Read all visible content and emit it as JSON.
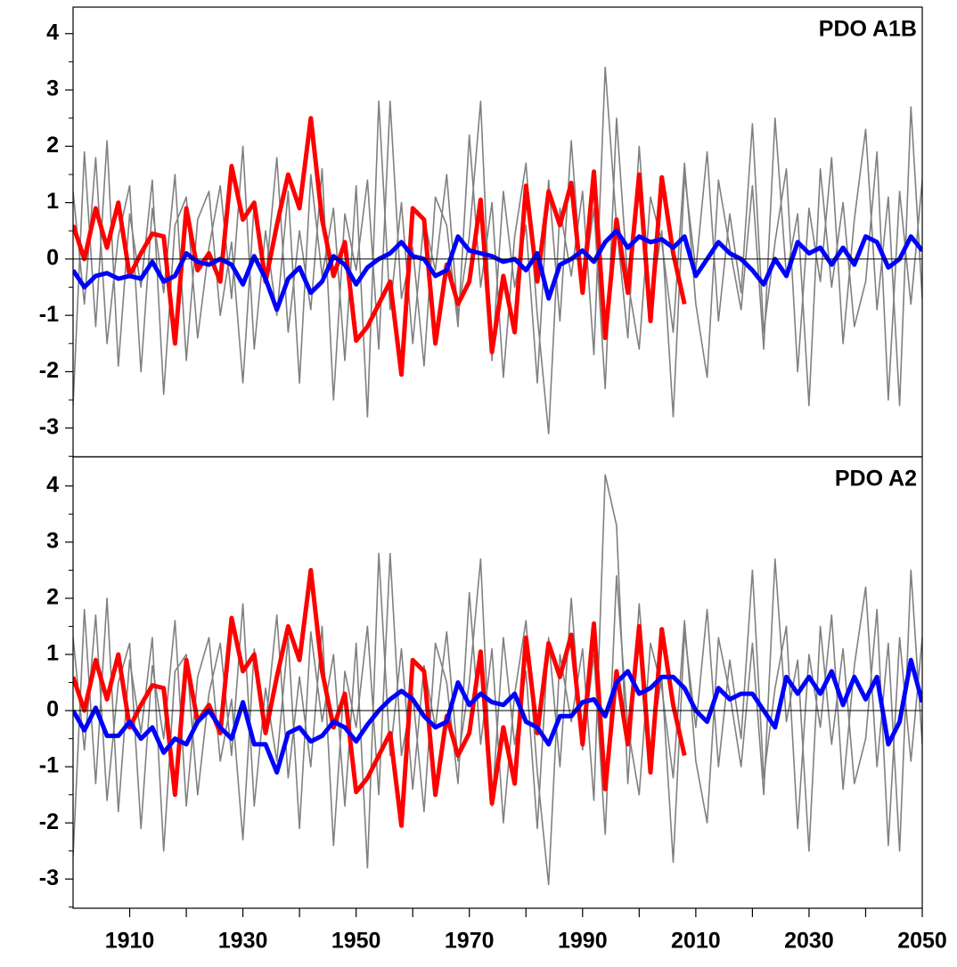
{
  "chart_data": [
    {
      "type": "line",
      "title": "PDO A1B",
      "x": [
        1900,
        1902,
        1904,
        1906,
        1908,
        1910,
        1912,
        1914,
        1916,
        1918,
        1920,
        1922,
        1924,
        1926,
        1928,
        1930,
        1932,
        1934,
        1936,
        1938,
        1940,
        1942,
        1944,
        1946,
        1948,
        1950,
        1952,
        1954,
        1956,
        1958,
        1960,
        1962,
        1964,
        1966,
        1968,
        1970,
        1972,
        1974,
        1976,
        1978,
        1980,
        1982,
        1984,
        1986,
        1988,
        1990,
        1992,
        1994,
        1996,
        1998,
        2000,
        2002,
        2004,
        2006,
        2008,
        2010,
        2012,
        2014,
        2016,
        2018,
        2020,
        2022,
        2024,
        2026,
        2028,
        2030,
        2032,
        2034,
        2036,
        2038,
        2040,
        2042,
        2044,
        2046,
        2048,
        2050
      ],
      "series": [
        {
          "color": "#808080",
          "values": [
            1.2,
            -0.8,
            1.8,
            -1.5,
            0.4,
            1.3,
            -2.0,
            0.9,
            -0.6,
            1.5,
            -1.8,
            0.7,
            1.2,
            -1.0,
            0.3,
            -2.2,
            1.0,
            -0.4,
            1.8,
            -1.3,
            0.5,
            -0.9,
            1.6,
            -2.5,
            0.8,
            -0.2,
            1.4,
            -1.6,
            2.8,
            -0.7,
            0.2,
            -1.9,
            1.1,
            0.6,
            -1.2,
            2.2,
            -0.5,
            1.0,
            -2.1,
            0.4,
            1.7,
            -1.0,
            -3.1,
            0.9,
            -0.3,
            1.2,
            -1.7,
            3.4,
            0.6,
            -1.4,
            2.0,
            -0.8,
            0.5,
            -2.8,
            1.5,
            -0.2,
            1.9,
            -1.1,
            0.8,
            -0.6,
            2.4,
            -1.3,
            0.3,
            1.6,
            -2.0,
            0.9,
            -0.4,
            1.8,
            -1.5,
            0.7,
            2.3,
            -0.9,
            1.1,
            -2.6,
            2.7,
            -0.7
          ]
        },
        {
          "color": "#808080",
          "values": [
            -2.6,
            1.9,
            -1.2,
            2.1,
            -1.9,
            0.8,
            -0.5,
            1.4,
            -2.4,
            0.6,
            1.1,
            -1.4,
            0.2,
            1.3,
            -0.7,
            2.0,
            -1.6,
            0.5,
            -1.0,
            1.2,
            -2.2,
            1.5,
            -0.3,
            0.9,
            -1.8,
            1.3,
            -2.8,
            2.8,
            -0.9,
            1.0,
            -1.5,
            0.7,
            -0.2,
            1.5,
            -1.0,
            0.4,
            2.8,
            -1.8,
            1.2,
            -0.5,
            0.6,
            -2.2,
            1.4,
            -1.1,
            2.1,
            -0.6,
            0.9,
            -2.3,
            2.5,
            -0.4,
            -1.6,
            1.1,
            0.3,
            -1.3,
            1.7,
            -0.8,
            -2.1,
            1.4,
            0.2,
            -0.9,
            1.3,
            -1.6,
            2.5,
            -0.3,
            0.8,
            -2.6,
            1.6,
            -0.5,
            1.0,
            -1.2,
            -0.4,
            1.9,
            -2.5,
            1.2,
            -0.8,
            1.4
          ]
        },
        {
          "color": "#ff0000",
          "values": [
            0.6,
            0.0,
            0.9,
            0.2,
            1.0,
            -0.3,
            0.1,
            0.45,
            0.4,
            -1.5,
            0.9,
            -0.2,
            0.1,
            -0.4,
            1.65,
            0.7,
            1.0,
            -0.4,
            0.6,
            1.5,
            0.9,
            2.5,
            0.7,
            -0.3,
            0.3,
            -1.45,
            -1.2,
            -0.8,
            -0.4,
            -2.05,
            0.9,
            0.7,
            -1.5,
            -0.1,
            -0.8,
            -0.4,
            1.05,
            -1.65,
            -0.3,
            -1.3,
            1.3,
            -0.4,
            1.2,
            0.6,
            1.35,
            -0.6,
            1.55,
            -1.4,
            0.7,
            -0.6,
            1.5,
            -1.1,
            1.45,
            0.1,
            -0.8,
            null,
            null,
            null,
            null,
            null,
            null,
            null,
            null,
            null,
            null,
            null,
            null,
            null,
            null,
            null,
            null,
            null,
            null,
            null,
            null,
            null
          ]
        },
        {
          "color": "#0000ff",
          "values": [
            -0.2,
            -0.5,
            -0.3,
            -0.25,
            -0.35,
            -0.3,
            -0.35,
            -0.05,
            -0.4,
            -0.3,
            0.1,
            -0.05,
            -0.1,
            0.0,
            -0.1,
            -0.45,
            0.05,
            -0.35,
            -0.9,
            -0.35,
            -0.15,
            -0.6,
            -0.4,
            0.05,
            -0.1,
            -0.45,
            -0.15,
            0.0,
            0.1,
            0.3,
            0.05,
            0.0,
            -0.3,
            -0.2,
            0.4,
            0.15,
            0.1,
            0.05,
            -0.05,
            0.0,
            -0.2,
            0.1,
            -0.7,
            -0.1,
            0.0,
            0.15,
            -0.05,
            0.3,
            0.5,
            0.2,
            0.4,
            0.3,
            0.35,
            0.2,
            0.4,
            -0.3,
            0.0,
            0.3,
            0.1,
            0.0,
            -0.2,
            -0.45,
            0.0,
            -0.3,
            0.3,
            0.1,
            0.2,
            -0.1,
            0.2,
            -0.1,
            0.4,
            0.3,
            -0.15,
            0.0,
            0.4,
            0.15
          ]
        }
      ],
      "xlim": [
        1900,
        2050
      ],
      "xminorticks": [
        1920,
        1940,
        1960,
        1980,
        2000,
        2020,
        2040
      ],
      "ylim": [
        -3.51,
        4.47
      ],
      "yticks": [
        -3,
        -2,
        -1,
        0,
        1,
        2,
        3,
        4
      ],
      "yminorticks": [
        -3.5,
        -2.5,
        -1.5,
        -0.5,
        0.5,
        1.5,
        2.5,
        3.5
      ],
      "zero_line": true
    },
    {
      "type": "line",
      "title": "PDO A2",
      "x": [
        1900,
        1902,
        1904,
        1906,
        1908,
        1910,
        1912,
        1914,
        1916,
        1918,
        1920,
        1922,
        1924,
        1926,
        1928,
        1930,
        1932,
        1934,
        1936,
        1938,
        1940,
        1942,
        1944,
        1946,
        1948,
        1950,
        1952,
        1954,
        1956,
        1958,
        1960,
        1962,
        1964,
        1966,
        1968,
        1970,
        1972,
        1974,
        1976,
        1978,
        1980,
        1982,
        1984,
        1986,
        1988,
        1990,
        1992,
        1994,
        1996,
        1998,
        2000,
        2002,
        2004,
        2006,
        2008,
        2010,
        2012,
        2014,
        2016,
        2018,
        2020,
        2022,
        2024,
        2026,
        2028,
        2030,
        2032,
        2034,
        2036,
        2038,
        2040,
        2042,
        2044,
        2046,
        2048,
        2050
      ],
      "series": [
        {
          "color": "#808080",
          "values": [
            1.3,
            -0.7,
            1.7,
            -1.6,
            0.5,
            1.2,
            -2.1,
            0.8,
            -0.5,
            1.6,
            -1.7,
            0.6,
            1.3,
            -0.9,
            0.2,
            -2.3,
            1.1,
            -0.3,
            1.7,
            -1.2,
            0.6,
            -1.0,
            1.5,
            -2.4,
            0.7,
            -0.3,
            1.5,
            -1.5,
            2.8,
            -0.8,
            0.3,
            -1.8,
            1.2,
            0.5,
            -1.3,
            2.1,
            -0.6,
            1.1,
            -2.0,
            0.3,
            1.6,
            -1.1,
            -3.1,
            1.0,
            -0.2,
            1.1,
            -1.6,
            4.2,
            3.3,
            -1.3,
            1.9,
            -0.7,
            0.6,
            -2.7,
            1.4,
            -0.3,
            1.8,
            -1.0,
            0.9,
            -0.5,
            2.5,
            -1.2,
            0.4,
            1.5,
            -2.1,
            1.0,
            -0.3,
            1.7,
            -1.4,
            0.8,
            2.2,
            -1.0,
            1.2,
            -2.5,
            2.5,
            -0.6
          ]
        },
        {
          "color": "#808080",
          "values": [
            -2.6,
            1.8,
            -1.3,
            2.0,
            -1.8,
            0.9,
            -0.4,
            1.3,
            -2.5,
            0.7,
            1.0,
            -1.5,
            0.3,
            1.2,
            -0.8,
            1.9,
            -1.7,
            0.4,
            -0.9,
            1.3,
            -2.1,
            1.4,
            -0.2,
            1.0,
            -1.7,
            1.2,
            -2.8,
            2.8,
            -0.8,
            1.1,
            -1.4,
            0.8,
            -0.3,
            1.4,
            -0.9,
            0.5,
            2.7,
            -1.7,
            1.3,
            -0.6,
            0.7,
            -2.1,
            1.3,
            -1.0,
            2.0,
            -0.7,
            1.0,
            -2.2,
            2.4,
            -0.3,
            -1.5,
            1.2,
            0.4,
            -1.2,
            1.6,
            -0.9,
            -2.0,
            1.3,
            0.3,
            -1.0,
            1.2,
            -1.5,
            2.7,
            -0.2,
            0.9,
            -2.5,
            1.5,
            -0.6,
            1.1,
            -1.3,
            -0.5,
            1.8,
            -2.4,
            1.3,
            -0.9,
            1.3
          ]
        },
        {
          "color": "#ff0000",
          "values": [
            0.6,
            0.0,
            0.9,
            0.2,
            1.0,
            -0.3,
            0.1,
            0.45,
            0.4,
            -1.5,
            0.9,
            -0.2,
            0.1,
            -0.4,
            1.65,
            0.7,
            1.0,
            -0.4,
            0.6,
            1.5,
            0.9,
            2.5,
            0.7,
            -0.3,
            0.3,
            -1.45,
            -1.2,
            -0.8,
            -0.4,
            -2.05,
            0.9,
            0.7,
            -1.5,
            -0.1,
            -0.8,
            -0.4,
            1.05,
            -1.65,
            -0.3,
            -1.3,
            1.3,
            -0.4,
            1.2,
            0.6,
            1.35,
            -0.6,
            1.55,
            -1.4,
            0.7,
            -0.6,
            1.5,
            -1.1,
            1.45,
            0.1,
            -0.8,
            null,
            null,
            null,
            null,
            null,
            null,
            null,
            null,
            null,
            null,
            null,
            null,
            null,
            null,
            null,
            null,
            null,
            null,
            null,
            null,
            null
          ]
        },
        {
          "color": "#0000ff",
          "values": [
            0.0,
            -0.35,
            0.05,
            -0.45,
            -0.45,
            -0.2,
            -0.5,
            -0.3,
            -0.75,
            -0.5,
            -0.6,
            -0.2,
            0.0,
            -0.3,
            -0.5,
            0.15,
            -0.6,
            -0.6,
            -1.1,
            -0.4,
            -0.3,
            -0.55,
            -0.45,
            -0.2,
            -0.3,
            -0.55,
            -0.25,
            0.0,
            0.2,
            0.35,
            0.2,
            -0.1,
            -0.3,
            -0.2,
            0.5,
            0.1,
            0.3,
            0.15,
            0.1,
            0.3,
            -0.2,
            -0.3,
            -0.6,
            -0.1,
            -0.1,
            0.15,
            0.2,
            -0.1,
            0.5,
            0.7,
            0.3,
            0.4,
            0.6,
            0.6,
            0.4,
            0.0,
            -0.2,
            0.4,
            0.2,
            0.3,
            0.3,
            0.0,
            -0.3,
            0.6,
            0.3,
            0.6,
            0.3,
            0.7,
            0.1,
            0.6,
            0.2,
            0.6,
            -0.6,
            -0.2,
            0.9,
            0.15
          ]
        }
      ],
      "xlim": [
        1900,
        2050
      ],
      "xticks": [
        1910,
        1930,
        1950,
        1970,
        1990,
        2010,
        2030,
        2050
      ],
      "xminorticks": [
        1920,
        1940,
        1960,
        1980,
        2000,
        2020,
        2040
      ],
      "ylim": [
        -3.52,
        4.52
      ],
      "yticks": [
        -3,
        -2,
        -1,
        0,
        1,
        2,
        3,
        4
      ],
      "yminorticks": [
        -3.5,
        -2.5,
        -1.5,
        -0.5,
        0.5,
        1.5,
        2.5,
        3.5
      ],
      "zero_line": true
    }
  ]
}
